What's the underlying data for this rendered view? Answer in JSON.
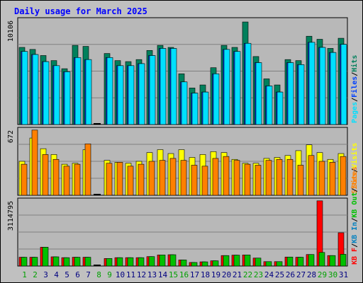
{
  "page": {
    "title": "Daily usage for March 2025"
  },
  "colors": {
    "background": "#c0c0c0",
    "panel_bg": "#b8b8b8",
    "title": "#0000ff",
    "hits": "#00805c",
    "files": "#0040ff",
    "pages": "#00e0ff",
    "visits": "#ffff00",
    "sites": "#ff8000",
    "kb_in": "#0080c0",
    "kb_out": "#00c000",
    "kb_f": "#ff0000",
    "weekend_day": "#00a000",
    "weekday": "#000080"
  },
  "chart_data": [
    {
      "type": "bar",
      "title": "Daily usage for March 2025",
      "ytick": "10106",
      "ylim": [
        0,
        10106
      ],
      "grid": true,
      "legend": [
        "Pages",
        "/",
        "Files",
        "/",
        "Hits"
      ],
      "categories": [
        "1",
        "2",
        "3",
        "4",
        "5",
        "6",
        "7",
        "8",
        "9",
        "10",
        "11",
        "12",
        "13",
        "14",
        "15",
        "16",
        "17",
        "18",
        "19",
        "20",
        "21",
        "22",
        "23",
        "24",
        "25",
        "26",
        "27",
        "28",
        "29",
        "30",
        "31"
      ],
      "weekend_days": [
        "1",
        "2",
        "8",
        "9",
        "15",
        "16",
        "22",
        "23",
        "29",
        "30"
      ],
      "series": [
        {
          "name": "Hits",
          "values": [
            7600,
            7400,
            6800,
            6300,
            5500,
            7800,
            7700,
            0,
            7000,
            6300,
            6200,
            6400,
            7300,
            7800,
            7600,
            5000,
            3600,
            3900,
            5600,
            7800,
            7600,
            10106,
            6700,
            4500,
            3900,
            6400,
            6300,
            8700,
            8400,
            7500,
            8500
          ]
        },
        {
          "name": "Files",
          "values": [
            7200,
            6900,
            6200,
            5800,
            5200,
            6600,
            6400,
            0,
            6600,
            5800,
            5800,
            6000,
            6800,
            7500,
            7500,
            4200,
            3100,
            3200,
            5000,
            7400,
            7200,
            8000,
            6100,
            3800,
            3200,
            6100,
            5900,
            8100,
            7600,
            7100,
            7900
          ]
        },
        {
          "name": "Pages",
          "values": [
            7200,
            6900,
            6200,
            5800,
            5200,
            6600,
            6400,
            0,
            6600,
            5800,
            5800,
            6000,
            6800,
            7500,
            7500,
            4200,
            3100,
            3200,
            5000,
            7400,
            7200,
            8000,
            6100,
            3800,
            3200,
            6100,
            5900,
            8100,
            7600,
            7100,
            7900
          ]
        }
      ]
    },
    {
      "type": "bar",
      "ytick": "672",
      "ylim": [
        0,
        672
      ],
      "grid": true,
      "legend": [
        "Sites",
        "/",
        "Visits"
      ],
      "categories": [
        "1",
        "2",
        "3",
        "4",
        "5",
        "6",
        "7",
        "8",
        "9",
        "10",
        "11",
        "12",
        "13",
        "14",
        "15",
        "16",
        "17",
        "18",
        "19",
        "20",
        "21",
        "22",
        "23",
        "24",
        "25",
        "26",
        "27",
        "28",
        "29",
        "30",
        "31"
      ],
      "series": [
        {
          "name": "Visits",
          "values": [
            350,
            590,
            480,
            420,
            320,
            330,
            470,
            0,
            360,
            340,
            330,
            350,
            440,
            470,
            430,
            470,
            390,
            420,
            450,
            440,
            370,
            330,
            330,
            380,
            390,
            410,
            460,
            520,
            440,
            370,
            430
          ]
        },
        {
          "name": "Sites",
          "values": [
            320,
            672,
            420,
            370,
            300,
            320,
            530,
            0,
            330,
            340,
            300,
            320,
            350,
            360,
            380,
            360,
            310,
            300,
            380,
            400,
            360,
            320,
            310,
            360,
            370,
            370,
            310,
            410,
            350,
            340,
            400
          ]
        }
      ]
    },
    {
      "type": "bar",
      "ytick": "3114795",
      "ylim": [
        0,
        3114795
      ],
      "grid": true,
      "legend": [
        "KB F",
        "/",
        "KB In",
        "/",
        "KB Out",
        "/",
        "Sites"
      ],
      "categories": [
        "1",
        "2",
        "3",
        "4",
        "5",
        "6",
        "7",
        "8",
        "9",
        "10",
        "11",
        "12",
        "13",
        "14",
        "15",
        "16",
        "17",
        "18",
        "19",
        "20",
        "21",
        "22",
        "23",
        "24",
        "25",
        "26",
        "27",
        "28",
        "29",
        "30",
        "31"
      ],
      "series": [
        {
          "name": "KB F",
          "values": [
            420000,
            420000,
            900000,
            440000,
            400000,
            420000,
            420000,
            0,
            360000,
            400000,
            400000,
            400000,
            450000,
            530000,
            540000,
            290000,
            170000,
            200000,
            250000,
            500000,
            520000,
            530000,
            380000,
            210000,
            210000,
            430000,
            420000,
            550000,
            3114795,
            500000,
            1590000
          ]
        },
        {
          "name": "KB Out",
          "values": [
            420000,
            420000,
            900000,
            440000,
            400000,
            420000,
            420000,
            0,
            360000,
            400000,
            400000,
            400000,
            450000,
            530000,
            540000,
            290000,
            170000,
            200000,
            250000,
            500000,
            520000,
            530000,
            380000,
            210000,
            210000,
            430000,
            420000,
            550000,
            650000,
            500000,
            560000
          ]
        }
      ]
    }
  ]
}
